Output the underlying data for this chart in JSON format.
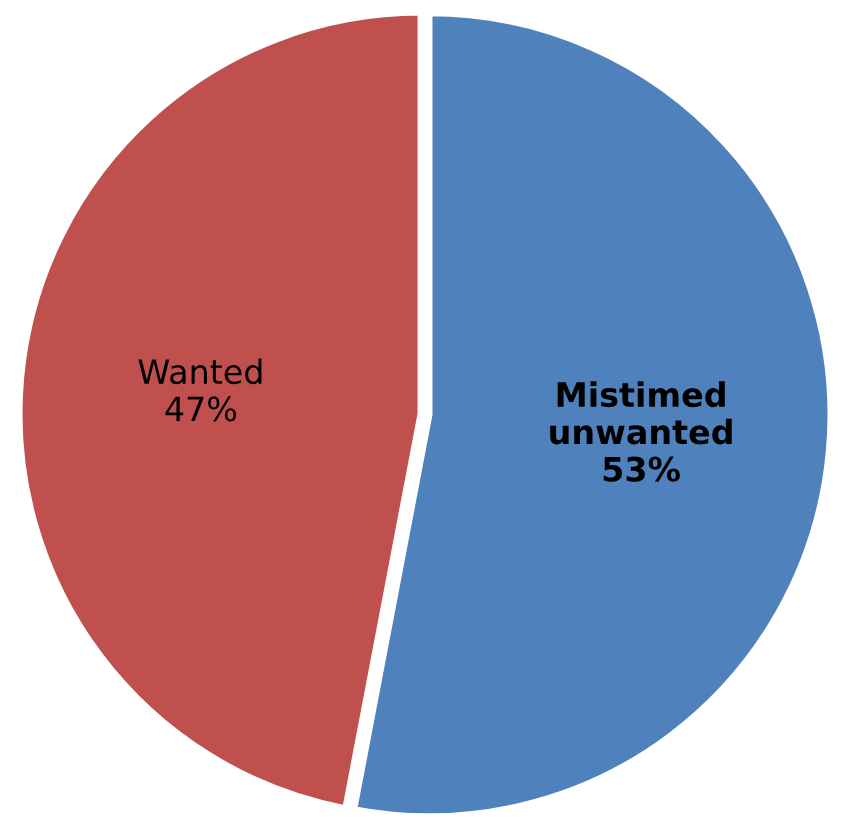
{
  "chart_data": {
    "type": "pie",
    "categories": [
      "Mistimed\nunwanted",
      "Wanted"
    ],
    "values": [
      53,
      47
    ],
    "colors": [
      "#4f81bd",
      "#c0504d"
    ],
    "value_labels": [
      "53%",
      "47%"
    ]
  }
}
